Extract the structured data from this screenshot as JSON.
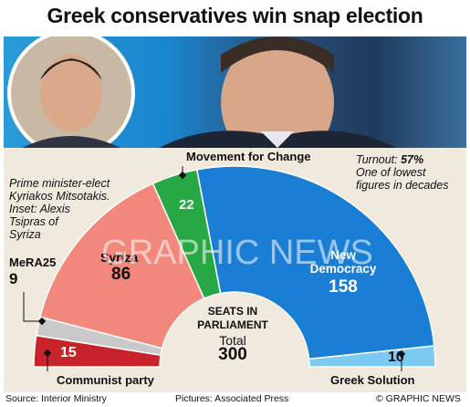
{
  "header": {
    "title": "Greek conservatives win snap election"
  },
  "caption": {
    "line1": "Prime minister-elect",
    "line2": "Kyriakos Mitsotakis.",
    "line3": "Inset: Alexis",
    "line4": "Tsipras of",
    "line5": "Syriza"
  },
  "turnout": {
    "label": "Turnout: ",
    "value": "57%",
    "note1": "One of lowest",
    "note2": "figures in decades"
  },
  "center": {
    "line1": "Seats in",
    "line2": "Parliament",
    "total_label": "Total",
    "total_value": "300"
  },
  "chart_data": {
    "type": "pie",
    "subtype": "parliament-semicircle",
    "title": "Seats in Parliament",
    "total": 300,
    "categories": [
      "Communist party",
      "MeRA25",
      "Syriza",
      "Movement for Change",
      "New Democracy",
      "Greek Solution"
    ],
    "values": [
      15,
      9,
      86,
      22,
      158,
      10
    ],
    "colors": [
      "#c8232b",
      "#c9c9c9",
      "#f2887c",
      "#27a844",
      "#1a7fd4",
      "#7ccaf2"
    ],
    "labels": {
      "communist": {
        "name": "Communist party",
        "value": "15"
      },
      "mera25": {
        "name": "MeRA25",
        "value": "9"
      },
      "syriza": {
        "name": "Syriza",
        "value": "86"
      },
      "kinal": {
        "name": "Movement for Change",
        "value": "22"
      },
      "nd_line1": "New",
      "nd_line2": "Democracy",
      "nd_value": "158",
      "greek_solution": {
        "name": "Greek Solution",
        "value": "10"
      }
    }
  },
  "watermark": "GRAPHIC NEWS",
  "footer": {
    "source": "Source: Interior Ministry",
    "pictures": "Pictures: Associated Press",
    "credit": "© GRAPHIC NEWS"
  }
}
